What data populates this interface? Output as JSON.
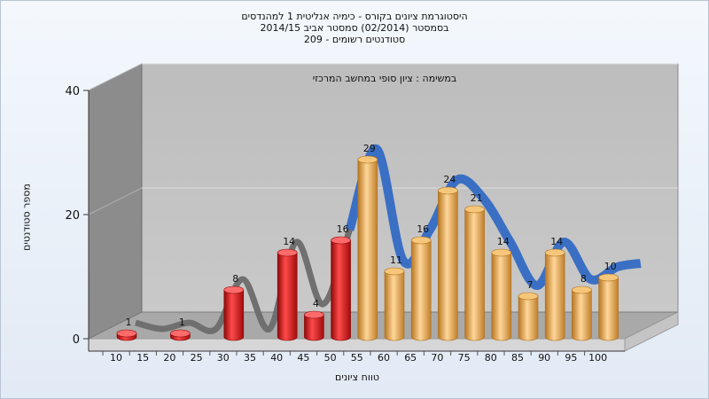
{
  "chart_data": {
    "type": "bar",
    "title": "היסטוגרמת ציונים בקורס - כימיה אנליטית 1 למהנדסים",
    "subtitle_lines": [
      "בסמסטר  (02/2014)  סמסטר אביב 2014/15",
      "סטודנטים רשומים - 209"
    ],
    "annotation": "במשימה : ציון סופי במחשב המרכזי",
    "ylabel": "מספר סטודנטים",
    "xlabel": "טווח ציונים",
    "ylim": [
      0,
      40
    ],
    "yticks": [
      0,
      20,
      40
    ],
    "x_tick_labels": [
      "10",
      "15",
      "20",
      "25",
      "30",
      "35",
      "40",
      "45",
      "50",
      "55",
      "60",
      "65",
      "70",
      "75",
      "80",
      "85",
      "90",
      "95",
      "100"
    ],
    "values": [
      1,
      0,
      1,
      0,
      8,
      0,
      14,
      4,
      16,
      29,
      11,
      16,
      24,
      21,
      14,
      7,
      14,
      8,
      10
    ],
    "bar_labels": [
      "1",
      "",
      "1",
      "",
      "8",
      "",
      "14",
      "4",
      "16",
      "29",
      "11",
      "16",
      "24",
      "21",
      "14",
      "7",
      "14",
      "8",
      "10"
    ],
    "fail_color": "#d42020",
    "pass_color": "#e9a94e",
    "curve_fail_color": "#6b6b6b",
    "curve_pass_color": "#3a6fc4",
    "grid": true,
    "style": "3d"
  }
}
